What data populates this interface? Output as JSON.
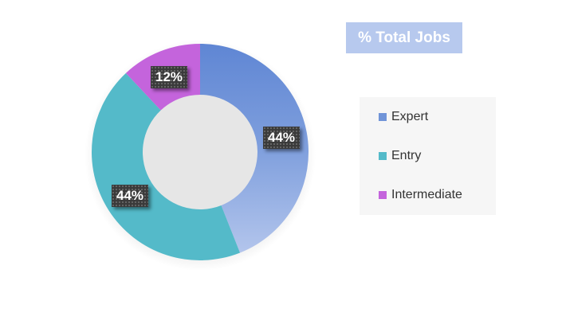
{
  "chart_data": {
    "type": "pie",
    "title": "% Total Jobs",
    "categories": [
      "Expert",
      "Entry",
      "Intermediate"
    ],
    "values": [
      44,
      44,
      12
    ],
    "unit": "%",
    "data_labels": [
      "44%",
      "44%",
      "12%"
    ],
    "legend_position": "right",
    "donut": true,
    "colors": {
      "Expert": "#7094d8",
      "Entry": "#54bac9",
      "Intermediate": "#c464dc"
    }
  }
}
